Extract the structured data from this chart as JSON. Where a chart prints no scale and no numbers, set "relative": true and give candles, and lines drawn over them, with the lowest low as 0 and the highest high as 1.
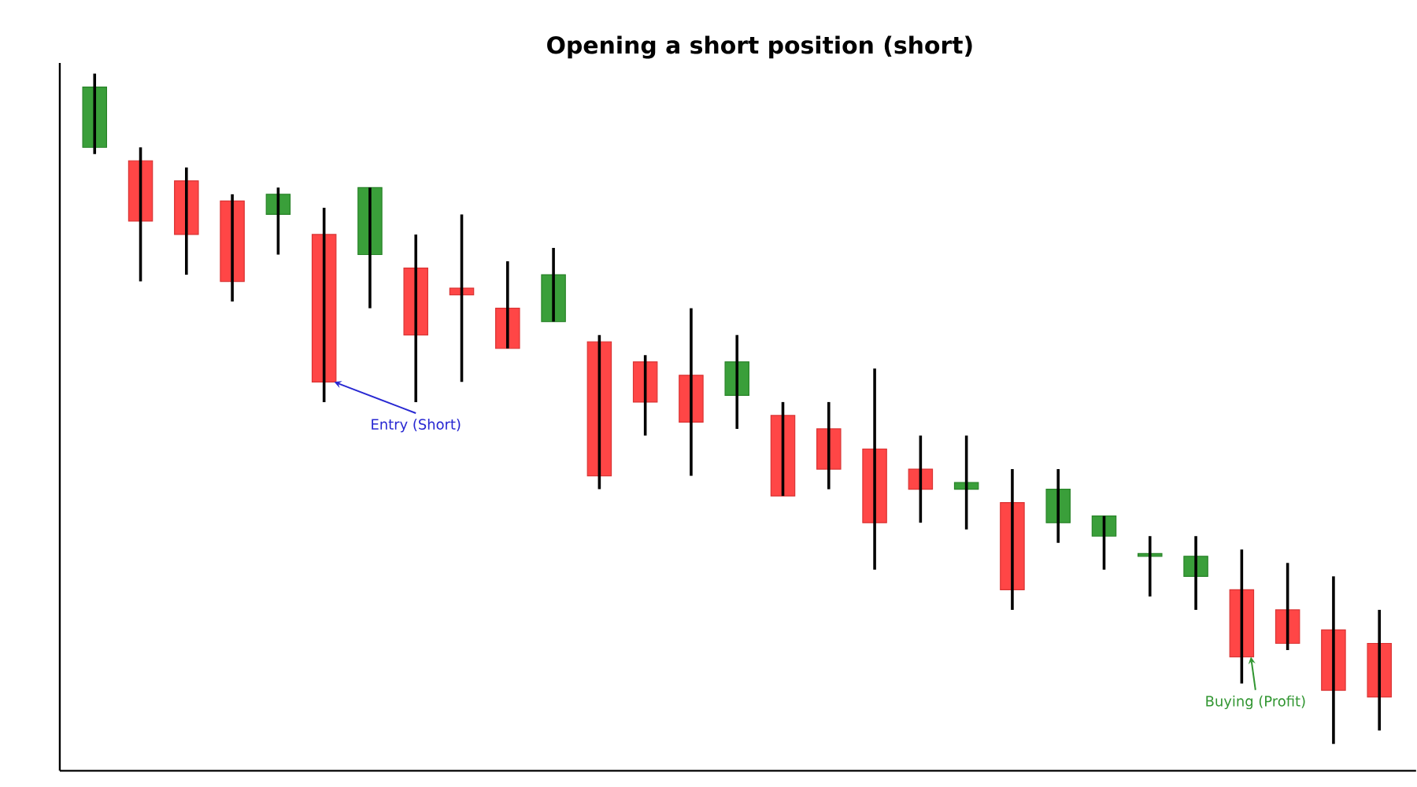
{
  "chart_data": {
    "type": "candlestick",
    "title": "Opening a short position (short)",
    "relative": true,
    "categories": [
      null,
      null,
      null,
      null,
      null,
      null,
      null,
      null,
      null,
      null,
      null,
      null,
      null,
      null,
      null,
      null,
      null,
      null,
      null,
      null,
      null,
      null,
      null,
      null,
      null,
      null,
      null,
      null,
      null
    ],
    "ohlc": [
      [
        0.89,
        1.0,
        0.88,
        0.98
      ],
      [
        0.87,
        0.89,
        0.69,
        0.78
      ],
      [
        0.84,
        0.86,
        0.7,
        0.76
      ],
      [
        0.81,
        0.82,
        0.66,
        0.69
      ],
      [
        0.79,
        0.83,
        0.73,
        0.82
      ],
      [
        0.76,
        0.8,
        0.51,
        0.54
      ],
      [
        0.73,
        0.83,
        0.65,
        0.83
      ],
      [
        0.71,
        0.76,
        0.51,
        0.61
      ],
      [
        0.68,
        0.79,
        0.54,
        0.67
      ],
      [
        0.65,
        0.72,
        0.59,
        0.59
      ],
      [
        0.63,
        0.74,
        0.63,
        0.7
      ],
      [
        0.6,
        0.61,
        0.38,
        0.4
      ],
      [
        0.57,
        0.58,
        0.46,
        0.51
      ],
      [
        0.55,
        0.65,
        0.4,
        0.48
      ],
      [
        0.52,
        0.61,
        0.47,
        0.57
      ],
      [
        0.49,
        0.51,
        0.37,
        0.37
      ],
      [
        0.47,
        0.51,
        0.38,
        0.41
      ],
      [
        0.44,
        0.56,
        0.26,
        0.33
      ],
      [
        0.41,
        0.46,
        0.33,
        0.38
      ],
      [
        0.38,
        0.46,
        0.32,
        0.39
      ],
      [
        0.36,
        0.41,
        0.2,
        0.23
      ],
      [
        0.33,
        0.41,
        0.3,
        0.38
      ],
      [
        0.31,
        0.34,
        0.26,
        0.34
      ],
      [
        0.28,
        0.31,
        0.22,
        0.28
      ],
      [
        0.25,
        0.31,
        0.2,
        0.28
      ],
      [
        0.23,
        0.29,
        0.09,
        0.13
      ],
      [
        0.2,
        0.27,
        0.14,
        0.15
      ],
      [
        0.17,
        0.25,
        0.0,
        0.08
      ],
      [
        0.15,
        0.2,
        0.02,
        0.07
      ]
    ],
    "colors": [
      "#2f9a2f",
      "#ff3c3c",
      "#ff3c3c",
      "#ff3c3c",
      "#2f9a2f",
      "#ff3c3c",
      "#2f9a2f",
      "#ff3c3c",
      "#ff3c3c",
      "#ff3c3c",
      "#2f9a2f",
      "#ff3c3c",
      "#ff3c3c",
      "#ff3c3c",
      "#2f9a2f",
      "#ff3c3c",
      "#ff3c3c",
      "#ff3c3c",
      "#ff3c3c",
      "#2f9a2f",
      "#ff3c3c",
      "#2f9a2f",
      "#2f9a2f",
      "#2f9a2f",
      "#2f9a2f",
      "#ff3c3c",
      "#ff3c3c",
      "#ff3c3c",
      "#ff3c3c"
    ],
    "annotations": [
      {
        "text": "Entry (Short)",
        "y": 0.54
      },
      {
        "text": "Buying (Profit)",
        "y": 0.13
      }
    ]
  }
}
